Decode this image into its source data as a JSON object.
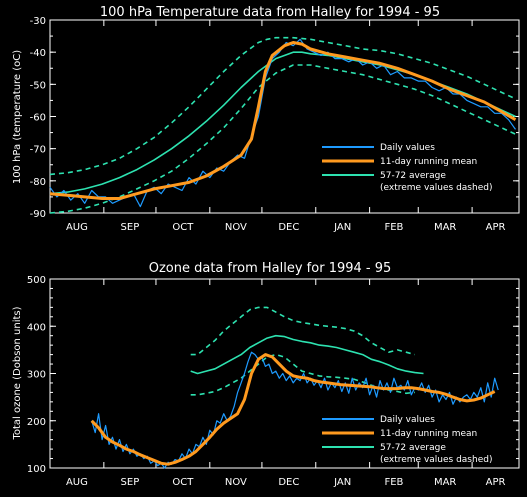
{
  "colors": {
    "background": "#000000",
    "axes": "#ffffff",
    "daily": "#1e9bff",
    "mean": "#ff9a1f",
    "climatology": "#2de2b0"
  },
  "chart_data": [
    {
      "type": "line",
      "title": "100 hPa Temperature data from Halley for 1994 - 95",
      "xlabel": "",
      "ylabel": "100 hPa (temperature (oC)",
      "xlim": [
        0,
        270
      ],
      "ylim": [
        -90,
        -30
      ],
      "yticks": [
        -90,
        -80,
        -70,
        -60,
        -50,
        -40,
        -30
      ],
      "months": [
        {
          "label": "AUG",
          "x": 0
        },
        {
          "label": "SEP",
          "x": 31
        },
        {
          "label": "OCT",
          "x": 61
        },
        {
          "label": "NOV",
          "x": 92
        },
        {
          "label": "DEC",
          "x": 122
        },
        {
          "label": "JAN",
          "x": 153
        },
        {
          "label": "FEB",
          "x": 184
        },
        {
          "label": "MAR",
          "x": 212
        },
        {
          "label": "APR",
          "x": 243
        }
      ],
      "legend": {
        "position": "right",
        "entries": [
          "Daily values",
          "11-day running mean",
          "57-72 average",
          "(extreme values dashed)"
        ]
      },
      "series": [
        {
          "name": "Daily values",
          "role": "daily",
          "x": [
            0,
            4,
            8,
            12,
            16,
            20,
            24,
            28,
            32,
            36,
            40,
            44,
            48,
            52,
            56,
            60,
            64,
            68,
            72,
            76,
            80,
            84,
            88,
            92,
            96,
            100,
            104,
            108,
            112,
            116,
            120,
            124,
            128,
            132,
            136,
            140,
            144,
            148,
            152,
            156,
            160,
            164,
            168,
            172,
            176,
            180,
            184,
            188,
            192,
            196,
            200,
            204,
            208,
            212,
            216,
            220,
            224,
            228,
            232,
            236,
            240,
            244,
            248,
            252,
            256,
            260,
            264,
            268
          ],
          "y": [
            -82,
            -85,
            -83,
            -86,
            -84,
            -87,
            -83,
            -85,
            -85,
            -87,
            -86,
            -85,
            -84,
            -88,
            -83,
            -82,
            -84,
            -81,
            -82,
            -83,
            -79,
            -81,
            -77,
            -79,
            -76,
            -77,
            -74,
            -72,
            -73,
            -66,
            -60,
            -48,
            -42,
            -40,
            -37,
            -38,
            -36,
            -39,
            -40,
            -41,
            -40,
            -42,
            -42,
            -43,
            -42,
            -44,
            -43,
            -45,
            -44,
            -47,
            -46,
            -48,
            -48,
            -49,
            -49,
            -51,
            -52,
            -51,
            -53,
            -53,
            -55,
            -56,
            -57,
            -57,
            -59,
            -59,
            -61,
            -64
          ]
        },
        {
          "name": "11-day running mean",
          "role": "mean",
          "x": [
            0,
            10,
            20,
            30,
            40,
            50,
            60,
            70,
            80,
            90,
            100,
            110,
            116,
            120,
            124,
            128,
            135,
            140,
            145,
            150,
            160,
            170,
            180,
            190,
            200,
            210,
            220,
            230,
            240,
            250,
            260,
            268
          ],
          "y": [
            -84,
            -84.5,
            -85,
            -85.5,
            -85.5,
            -84,
            -82.5,
            -81.5,
            -80.5,
            -78.5,
            -75.5,
            -72,
            -67,
            -57,
            -46,
            -41,
            -38,
            -37,
            -37.5,
            -39,
            -40.5,
            -41.5,
            -42.5,
            -43.5,
            -45,
            -47,
            -49,
            -51.5,
            -53.5,
            -55.5,
            -58.5,
            -61
          ]
        },
        {
          "name": "57-72 average",
          "role": "clim",
          "x": [
            0,
            10,
            20,
            30,
            40,
            50,
            60,
            70,
            80,
            90,
            100,
            110,
            120,
            130,
            140,
            145,
            150,
            160,
            170,
            180,
            190,
            200,
            210,
            220,
            230,
            240,
            250,
            260,
            268
          ],
          "y": [
            -84,
            -83.5,
            -82.5,
            -81,
            -79,
            -76.5,
            -73.5,
            -70,
            -66,
            -61.5,
            -56.5,
            -51,
            -46,
            -42,
            -40,
            -40,
            -40.5,
            -41,
            -42,
            -43,
            -44,
            -45.5,
            -47,
            -49,
            -51,
            -53,
            -55.5,
            -58,
            -60
          ]
        },
        {
          "name": "57-72 maximum",
          "role": "clim-extreme",
          "x": [
            0,
            10,
            20,
            30,
            40,
            50,
            60,
            70,
            80,
            90,
            100,
            110,
            120,
            125,
            130,
            140,
            150,
            160,
            170,
            180,
            190,
            200,
            210,
            220,
            230,
            240,
            250,
            260,
            268
          ],
          "y": [
            -78,
            -77.5,
            -76.5,
            -75,
            -73,
            -70,
            -66.5,
            -62,
            -57,
            -51.5,
            -46,
            -41,
            -37,
            -36,
            -35.5,
            -35.5,
            -36,
            -37,
            -38,
            -39,
            -39.5,
            -40.5,
            -42,
            -43.5,
            -45.5,
            -47.5,
            -50,
            -52.5,
            -54.5
          ]
        },
        {
          "name": "57-72 minimum",
          "role": "clim-extreme",
          "x": [
            0,
            10,
            20,
            30,
            40,
            50,
            60,
            70,
            80,
            90,
            100,
            110,
            120,
            130,
            140,
            150,
            160,
            170,
            180,
            190,
            200,
            210,
            220,
            230,
            240,
            250,
            260,
            268
          ],
          "y": [
            -90,
            -89.5,
            -88.5,
            -87,
            -85,
            -82.5,
            -80,
            -77,
            -73,
            -68.5,
            -63.5,
            -57.5,
            -51,
            -46.5,
            -44,
            -44,
            -45,
            -46,
            -47,
            -48.5,
            -50,
            -51.5,
            -53.5,
            -56,
            -58.5,
            -61,
            -63.5,
            -65.5
          ]
        }
      ]
    },
    {
      "type": "line",
      "title": "Ozone data from Halley for 1994 - 95",
      "xlabel": "",
      "ylabel": "Total ozone (Dobson units)",
      "xlim": [
        0,
        270
      ],
      "ylim": [
        100,
        500
      ],
      "yticks": [
        100,
        200,
        300,
        400,
        500
      ],
      "months": [
        {
          "label": "AUG",
          "x": 0
        },
        {
          "label": "SEP",
          "x": 31
        },
        {
          "label": "OCT",
          "x": 61
        },
        {
          "label": "NOV",
          "x": 92
        },
        {
          "label": "DEC",
          "x": 122
        },
        {
          "label": "JAN",
          "x": 153
        },
        {
          "label": "FEB",
          "x": 184
        },
        {
          "label": "MAR",
          "x": 212
        },
        {
          "label": "APR",
          "x": 243
        }
      ],
      "legend": {
        "position": "right",
        "entries": [
          "Daily values",
          "11-day running mean",
          "57-72 average",
          "(extreme values dashed)"
        ]
      },
      "series": [
        {
          "name": "Daily values",
          "role": "daily",
          "x": [
            24,
            26,
            28,
            30,
            32,
            34,
            36,
            38,
            40,
            42,
            44,
            46,
            48,
            50,
            52,
            54,
            56,
            58,
            60,
            62,
            64,
            66,
            68,
            70,
            72,
            74,
            76,
            78,
            80,
            82,
            84,
            86,
            88,
            90,
            92,
            94,
            96,
            98,
            100,
            102,
            104,
            106,
            108,
            110,
            112,
            114,
            116,
            118,
            120,
            122,
            124,
            126,
            128,
            130,
            132,
            134,
            136,
            138,
            140,
            142,
            144,
            146,
            148,
            150,
            152,
            154,
            156,
            158,
            160,
            162,
            164,
            166,
            168,
            170,
            172,
            174,
            176,
            178,
            180,
            182,
            184,
            186,
            188,
            190,
            192,
            194,
            196,
            198,
            200,
            202,
            204,
            206,
            208,
            210,
            212,
            214,
            216,
            218,
            220,
            222,
            224,
            226,
            228,
            230,
            232,
            234,
            236,
            238,
            240,
            242,
            244,
            246,
            248,
            250,
            252,
            254,
            256,
            258
          ],
          "y": [
            200,
            175,
            215,
            160,
            190,
            150,
            165,
            140,
            160,
            135,
            150,
            130,
            140,
            125,
            130,
            120,
            125,
            110,
            115,
            105,
            110,
            100,
            112,
            108,
            118,
            115,
            130,
            120,
            140,
            130,
            150,
            145,
            165,
            150,
            180,
            170,
            200,
            195,
            215,
            200,
            210,
            230,
            260,
            280,
            300,
            325,
            345,
            340,
            330,
            335,
            315,
            320,
            300,
            305,
            290,
            300,
            285,
            295,
            280,
            290,
            285,
            300,
            280,
            290,
            275,
            285,
            270,
            290,
            265,
            280,
            270,
            285,
            262,
            280,
            258,
            290,
            265,
            280,
            270,
            290,
            255,
            275,
            250,
            285,
            265,
            280,
            260,
            290,
            270,
            275,
            265,
            285,
            255,
            270,
            265,
            280,
            260,
            275,
            250,
            265,
            240,
            255,
            245,
            260,
            235,
            250,
            240,
            250,
            255,
            245,
            260,
            250,
            270,
            240,
            280,
            250,
            290,
            265
          ]
        },
        {
          "name": "11-day running mean",
          "role": "mean",
          "x": [
            24,
            28,
            32,
            36,
            40,
            44,
            48,
            52,
            56,
            60,
            64,
            68,
            72,
            76,
            80,
            84,
            88,
            92,
            96,
            100,
            104,
            108,
            112,
            116,
            120,
            124,
            128,
            132,
            136,
            140,
            144,
            148,
            152,
            156,
            160,
            164,
            168,
            172,
            176,
            180,
            184,
            188,
            192,
            196,
            200,
            204,
            208,
            212,
            216,
            220,
            224,
            228,
            232,
            236,
            240,
            244,
            248,
            252,
            256
          ],
          "y": [
            200,
            185,
            165,
            155,
            148,
            140,
            135,
            128,
            122,
            116,
            110,
            108,
            112,
            118,
            125,
            135,
            150,
            165,
            182,
            195,
            205,
            215,
            245,
            300,
            330,
            340,
            335,
            320,
            305,
            295,
            292,
            290,
            285,
            282,
            280,
            278,
            276,
            275,
            274,
            273,
            272,
            270,
            268,
            268,
            268,
            270,
            270,
            268,
            265,
            262,
            260,
            256,
            250,
            245,
            242,
            244,
            248,
            255,
            262
          ]
        },
        {
          "name": "57-72 average",
          "role": "clim",
          "x": [
            81,
            85,
            90,
            95,
            100,
            105,
            110,
            115,
            120,
            125,
            130,
            135,
            140,
            145,
            150,
            155,
            160,
            165,
            170,
            175,
            180,
            185,
            190,
            195,
            200,
            205,
            210,
            215
          ],
          "y": [
            305,
            300,
            305,
            310,
            320,
            330,
            340,
            355,
            365,
            375,
            380,
            378,
            372,
            368,
            365,
            360,
            358,
            355,
            350,
            345,
            340,
            330,
            325,
            318,
            310,
            305,
            302,
            300
          ]
        },
        {
          "name": "57-72 maximum",
          "role": "clim-extreme",
          "x": [
            81,
            85,
            90,
            95,
            100,
            105,
            110,
            115,
            120,
            125,
            130,
            135,
            140,
            145,
            150,
            155,
            160,
            165,
            170,
            175,
            180,
            185,
            190,
            195,
            200,
            205,
            210
          ],
          "y": [
            340,
            340,
            355,
            370,
            390,
            405,
            420,
            435,
            440,
            440,
            430,
            420,
            412,
            408,
            405,
            402,
            400,
            398,
            395,
            390,
            380,
            365,
            355,
            345,
            350,
            345,
            340
          ]
        },
        {
          "name": "57-72 minimum",
          "role": "clim-extreme",
          "x": [
            81,
            85,
            90,
            95,
            100,
            105,
            110,
            115,
            120,
            125,
            130,
            135,
            140,
            145,
            150,
            155,
            160,
            165,
            170,
            175,
            180,
            185,
            190,
            195,
            200,
            205,
            210
          ],
          "y": [
            255,
            255,
            258,
            262,
            270,
            280,
            290,
            305,
            320,
            335,
            340,
            335,
            320,
            305,
            300,
            295,
            293,
            292,
            290,
            288,
            282,
            275,
            268,
            265,
            262,
            258,
            260
          ]
        }
      ]
    }
  ]
}
